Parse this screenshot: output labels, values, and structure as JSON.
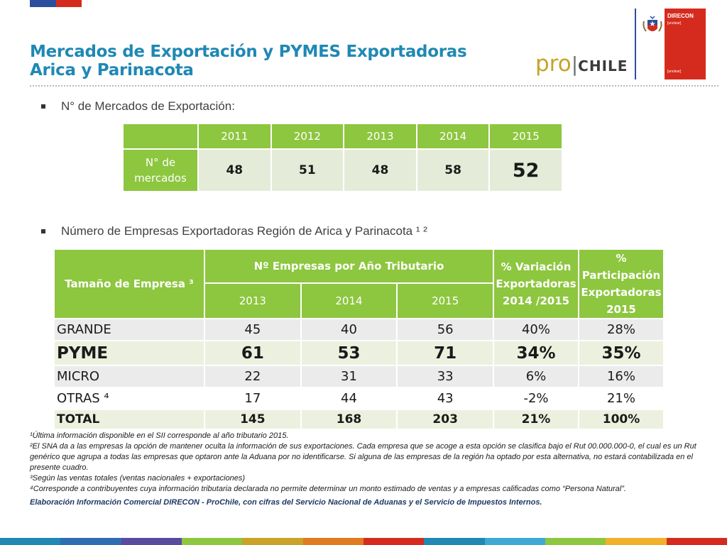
{
  "title": {
    "line1": "Mercados de Exportación y PYMES Exportadoras",
    "line2": "Arica y Parinacota"
  },
  "logos": {
    "prochile_pro": "pro",
    "prochile_sep": "|",
    "prochile_chile": "CHILE",
    "direcon_name": "DIRECON",
    "direcon_sub": "[unclear]",
    "direcon_foot": "[unclear]"
  },
  "section1": {
    "bullet": "N° de Mercados de Exportación:",
    "table": {
      "years": [
        "2011",
        "2012",
        "2013",
        "2014",
        "2015"
      ],
      "row_label": "N° de mercados",
      "values": [
        "48",
        "51",
        "48",
        "58",
        "52"
      ]
    }
  },
  "section2": {
    "bullet": "Número de Empresas Exportadoras Región de Arica y Parinacota ¹ ²",
    "table": {
      "h_size": "Tamaño de Empresa ³",
      "h_empresas": "Nº Empresas por Año Tributario",
      "h_var": "% Variación Exportadoras 2014 /2015",
      "h_part": "% Participación Exportadoras 2015",
      "years": [
        "2013",
        "2014",
        "2015"
      ],
      "rows": [
        {
          "label": "GRANDE",
          "v2013": "45",
          "v2014": "40",
          "v2015": "56",
          "var": "40%",
          "part": "28%"
        },
        {
          "label": "PYME",
          "v2013": "61",
          "v2014": "53",
          "v2015": "71",
          "var": "34%",
          "part": "35%"
        },
        {
          "label": "MICRO",
          "v2013": "22",
          "v2014": "31",
          "v2015": "33",
          "var": "6%",
          "part": "16%"
        },
        {
          "label": "OTRAS ⁴",
          "v2013": "17",
          "v2014": "44",
          "v2015": "43",
          "var": "-2%",
          "part": "21%"
        },
        {
          "label": "TOTAL",
          "v2013": "145",
          "v2014": "168",
          "v2015": "203",
          "var": "21%",
          "part": "100%"
        }
      ]
    }
  },
  "footnotes": {
    "n1": "¹Última información disponible en el SII corresponde al año tributario 2015.",
    "n2": "²El SNA da a las empresas la opción de mantener oculta la información de sus exportaciones. Cada empresa que se acoge a esta opción se clasifica bajo el Rut 00.000.000-0, el cual es un Rut genérico que agrupa a todas las empresas que optaron ante la Aduana por no identificarse. Si alguna de las empresas de la región ha optado por esta alternativa, no estará contabilizada en el presente cuadro.",
    "n3": "³Según las ventas totales (ventas nacionales + exportaciones)",
    "n4": "⁴Corresponde a contribuyentes cuya información tributaria declarada no permite determinar un monto estimado de ventas y a empresas calificadas como “Persona Natural”.",
    "source": "Elaboración Información Comercial DIRECON - ProChile, con cifras del Servicio Nacional de Aduanas y el Servicio de Impuestos Internos."
  },
  "colors": {
    "accent_green": "#8dc63f",
    "title_blue": "#1f88b4",
    "flag_blue": "#2b4f9c",
    "flag_red": "#d52b1e",
    "rainbow": [
      "#1f88b4",
      "#2e6db4",
      "#5a4aa0",
      "#8dc63f",
      "#c9a227",
      "#e07b22",
      "#d52b1e",
      "#1f88b4",
      "#3fa9d6",
      "#8dc63f",
      "#f2b12b",
      "#d52b1e"
    ]
  }
}
